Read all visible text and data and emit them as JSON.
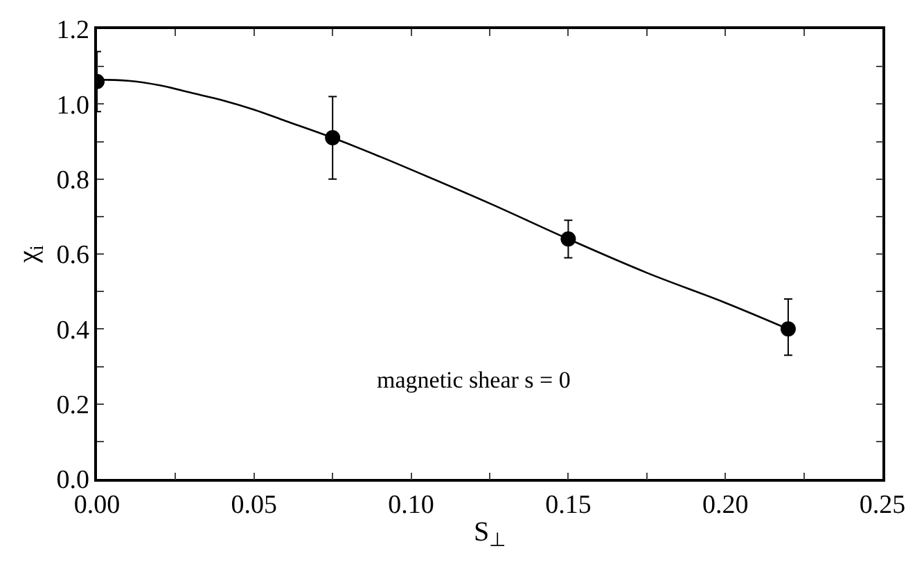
{
  "chart_data": {
    "type": "scatter",
    "xlabel": "S$_{⊥}$",
    "ylabel": "χ$_{i}$",
    "xlim": [
      0,
      0.25
    ],
    "ylim": [
      0,
      1.2
    ],
    "xticks": [
      {
        "value": 0,
        "label": "0.00"
      },
      {
        "value": 0.025,
        "label": null
      },
      {
        "value": 0.05,
        "label": "0.05"
      },
      {
        "value": 0.075,
        "label": null
      },
      {
        "value": 0.1,
        "label": "0.10"
      },
      {
        "value": 0.125,
        "label": null
      },
      {
        "value": 0.15,
        "label": "0.15"
      },
      {
        "value": 0.175,
        "label": null
      },
      {
        "value": 0.2,
        "label": "0.20"
      },
      {
        "value": 0.225,
        "label": null
      },
      {
        "value": 0.25,
        "label": "0.25"
      }
    ],
    "yticks": [
      {
        "value": 0,
        "label": "0.0"
      },
      {
        "value": 0.1,
        "label": null
      },
      {
        "value": 0.2,
        "label": "0.2"
      },
      {
        "value": 0.3,
        "label": null
      },
      {
        "value": 0.4,
        "label": "0.4"
      },
      {
        "value": 0.5,
        "label": null
      },
      {
        "value": 0.6,
        "label": "0.6"
      },
      {
        "value": 0.7,
        "label": null
      },
      {
        "value": 0.8,
        "label": "0.8"
      },
      {
        "value": 0.9,
        "label": null
      },
      {
        "value": 1.0,
        "label": "1.0"
      },
      {
        "value": 1.1,
        "label": null
      },
      {
        "value": 1.2,
        "label": "1.2"
      }
    ],
    "marker": "circle",
    "series": [
      {
        "color": "#000000",
        "x": [
          0,
          0.075,
          0.15,
          0.22
        ],
        "values": [
          1.06,
          0.91,
          0.64,
          0.4
        ],
        "errors": [
          0.08,
          [
            0.8,
            1.02
          ],
          [
            0.59,
            0.69
          ],
          [
            0.33,
            0.48
          ]
        ]
      },
      {
        "type": "line",
        "color": "#000000",
        "marker": "none",
        "line_style": "solid",
        "x": [
          0,
          0.01,
          0.02,
          0.03,
          0.04,
          0.05,
          0.06,
          0.075,
          0.09,
          0.1,
          0.125,
          0.15,
          0.175,
          0.2,
          0.22
        ],
        "values": [
          1.065,
          1.062,
          1.05,
          1.03,
          1.01,
          0.985,
          0.955,
          0.91,
          0.86,
          0.825,
          0.735,
          0.64,
          0.55,
          0.47,
          0.4
        ]
      }
    ],
    "annotations": [
      "magnetic shear s = 0"
    ]
  }
}
